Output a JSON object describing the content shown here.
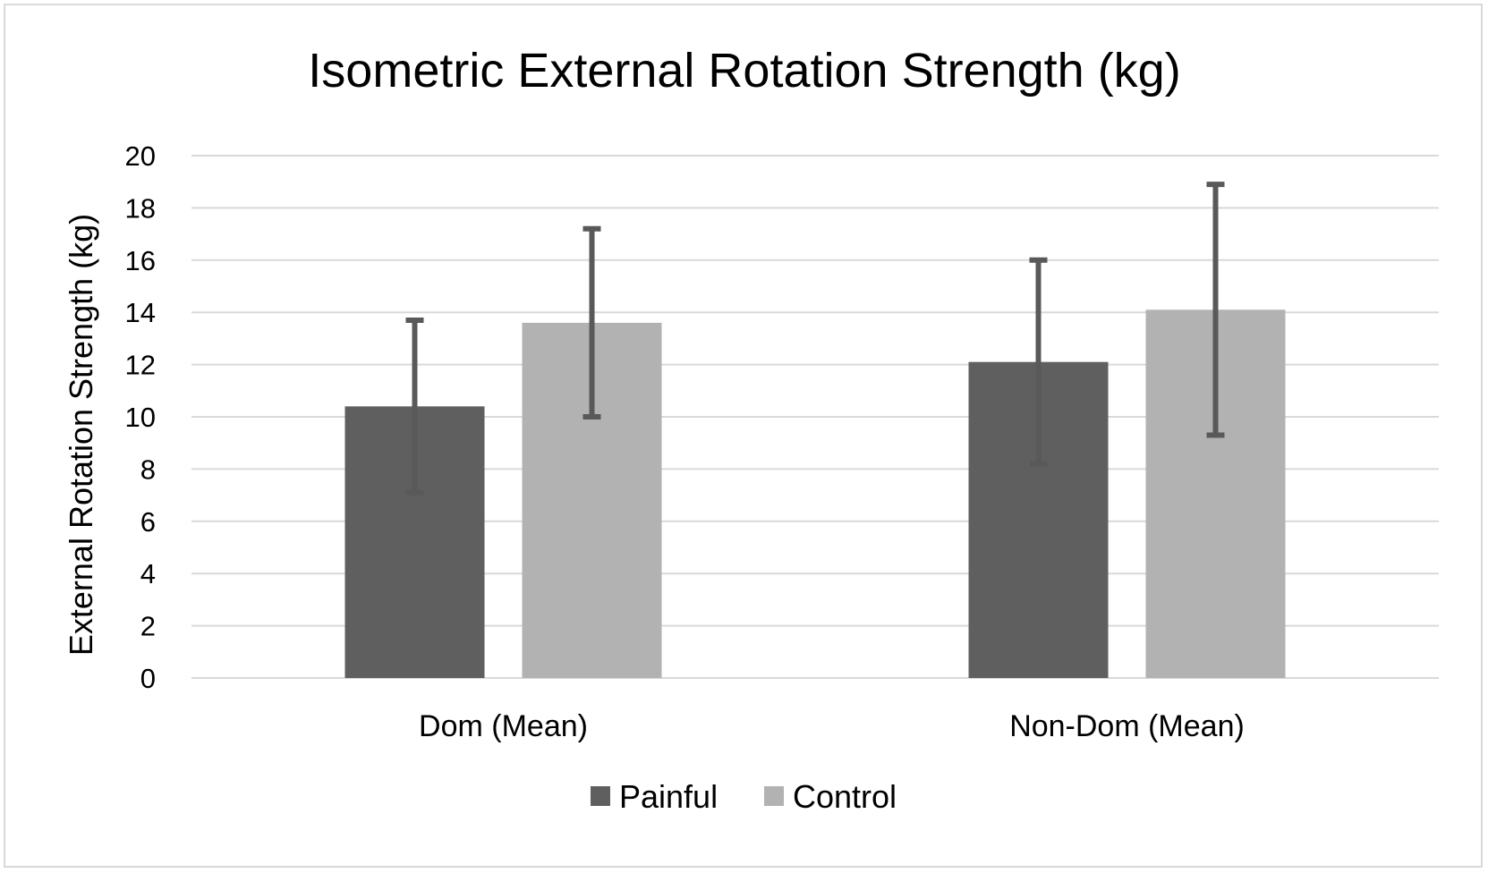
{
  "chart_data": {
    "type": "bar",
    "title": "Isometric External Rotation Strength (kg)",
    "xlabel": "",
    "ylabel": "External Rotation Strength (kg)",
    "categories": [
      "Dom (Mean)",
      "Non-Dom (Mean)"
    ],
    "ylim": [
      0,
      20
    ],
    "yticks": [
      0,
      2,
      4,
      6,
      8,
      10,
      12,
      14,
      16,
      18,
      20
    ],
    "grid": true,
    "legend_position": "bottom",
    "series": [
      {
        "name": "Painful",
        "color": "#5f5f5f",
        "values": [
          10.4,
          12.1
        ],
        "error_low": [
          7.1,
          8.2
        ],
        "error_high": [
          13.7,
          16.0
        ]
      },
      {
        "name": "Control",
        "color": "#b2b2b2",
        "values": [
          13.6,
          14.1
        ],
        "error_low": [
          10.0,
          9.3
        ],
        "error_high": [
          17.2,
          18.9
        ]
      }
    ],
    "error_bar_color": "#595959",
    "gridline_color": "#d9d9d9"
  }
}
